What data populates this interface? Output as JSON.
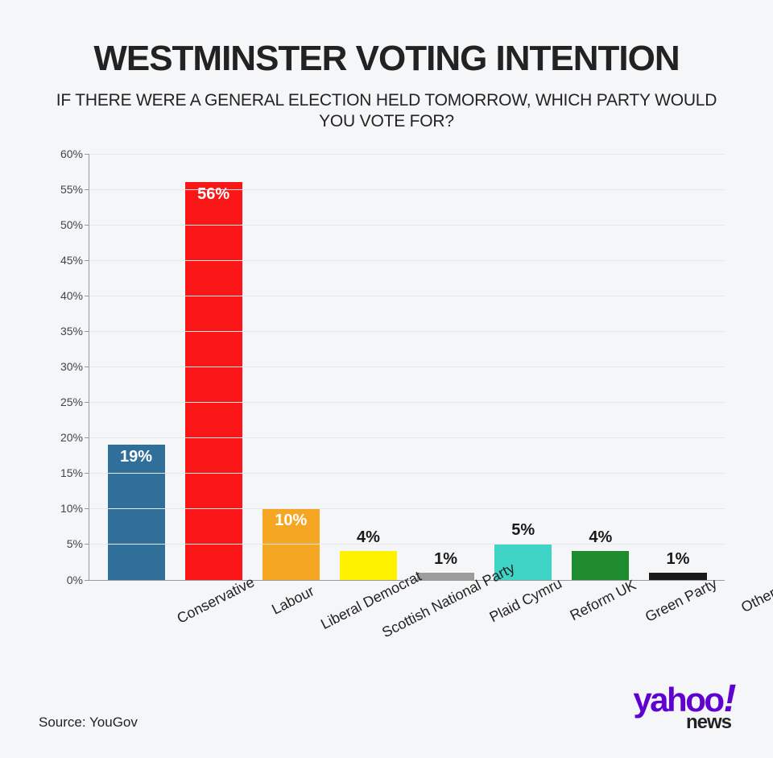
{
  "title": "WESTMINSTER VOTING INTENTION",
  "subtitle": "IF THERE WERE A GENERAL ELECTION HELD TOMORROW, WHICH PARTY WOULD YOU VOTE FOR?",
  "source": "Source: YouGov",
  "logo": {
    "brand": "yahoo",
    "bang": "!",
    "sub": "news",
    "brand_color": "#5f01d1"
  },
  "chart": {
    "type": "bar",
    "ylim": [
      0,
      60
    ],
    "ytick_step": 5,
    "ytick_suffix": "%",
    "background_color": "#f5f6f8",
    "axis_color": "#999999",
    "grid_color": "#e8e8e8",
    "title_fontsize": 44,
    "subtitle_fontsize": 21,
    "label_fontsize": 18,
    "value_fontsize": 20,
    "bar_width": 0.74,
    "value_inside_threshold": 8,
    "categories": [
      "Conservative",
      "Labour",
      "Liberal Democrat",
      "Scottish National Party",
      "Plaid Cymru",
      "Reform UK",
      "Green Party",
      "Other"
    ],
    "values": [
      19,
      56,
      10,
      4,
      1,
      5,
      4,
      1
    ],
    "bar_colors": [
      "#2f6f9a",
      "#fa1616",
      "#f5a623",
      "#fff200",
      "#9c9c9c",
      "#3fd4c6",
      "#1e8c2e",
      "#1a1a1a"
    ],
    "value_label_colors_inside": [
      "#ffffff",
      "#ffffff",
      "#ffffff",
      "#1a1a1a",
      "#1a1a1a",
      "#ffffff",
      "#1a1a1a",
      "#1a1a1a"
    ],
    "value_label_colors_outside": "#1a1a1a"
  }
}
